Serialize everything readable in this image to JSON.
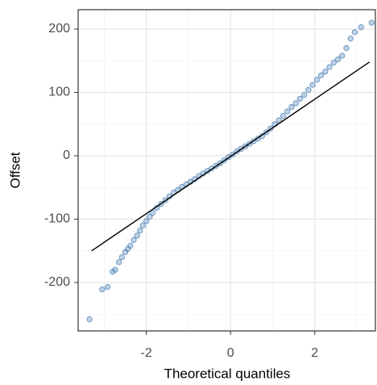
{
  "chart_data": {
    "type": "scatter",
    "x_label": "Theoretical quantiles",
    "y_label": "Offset",
    "x": [
      -3.35,
      -3.05,
      -2.92,
      -2.8,
      -2.74,
      -2.65,
      -2.58,
      -2.5,
      -2.44,
      -2.38,
      -2.3,
      -2.22,
      -2.15,
      -2.08,
      -2.0,
      -1.92,
      -1.85,
      -1.75,
      -1.65,
      -1.55,
      -1.45,
      -1.35,
      -1.25,
      -1.15,
      -1.05,
      -0.95,
      -0.85,
      -0.75,
      -0.65,
      -0.55,
      -0.45,
      -0.35,
      -0.25,
      -0.15,
      -0.05,
      0.05,
      0.15,
      0.25,
      0.35,
      0.45,
      0.55,
      0.65,
      0.75,
      0.85,
      0.95,
      1.05,
      1.15,
      1.25,
      1.35,
      1.45,
      1.55,
      1.65,
      1.75,
      1.85,
      1.95,
      2.05,
      2.15,
      2.25,
      2.35,
      2.45,
      2.55,
      2.65,
      2.75,
      2.85,
      2.95,
      3.1,
      3.35
    ],
    "values": [
      -258,
      -211,
      -207,
      -183,
      -180,
      -168,
      -160,
      -152,
      -147,
      -142,
      -133,
      -126,
      -118,
      -110,
      -103,
      -96,
      -90,
      -82,
      -76,
      -70,
      -64,
      -58,
      -54,
      -49,
      -45,
      -41,
      -37,
      -32,
      -28,
      -24,
      -20,
      -16,
      -12,
      -7,
      -2,
      2,
      7,
      11,
      15,
      19,
      23,
      27,
      31,
      37,
      43,
      50,
      56,
      63,
      70,
      77,
      83,
      90,
      96,
      104,
      112,
      120,
      127,
      133,
      140,
      147,
      152,
      158,
      170,
      185,
      195,
      203,
      210
    ],
    "color": "#4a7fb5",
    "reference_line": {
      "x": [
        -3.3,
        3.3
      ],
      "y": [
        -150,
        148
      ],
      "color": "#000000"
    },
    "xlim": [
      -3.62,
      3.44
    ],
    "ylim": [
      -276.4,
      230.6
    ],
    "xticks": [
      -2,
      0,
      2
    ],
    "yticks": [
      -200,
      -100,
      0,
      100,
      200
    ],
    "xminor": [
      -3,
      -1,
      1,
      3
    ],
    "yminor": [
      -250,
      -150,
      -50,
      50,
      150
    ],
    "grid": true
  }
}
